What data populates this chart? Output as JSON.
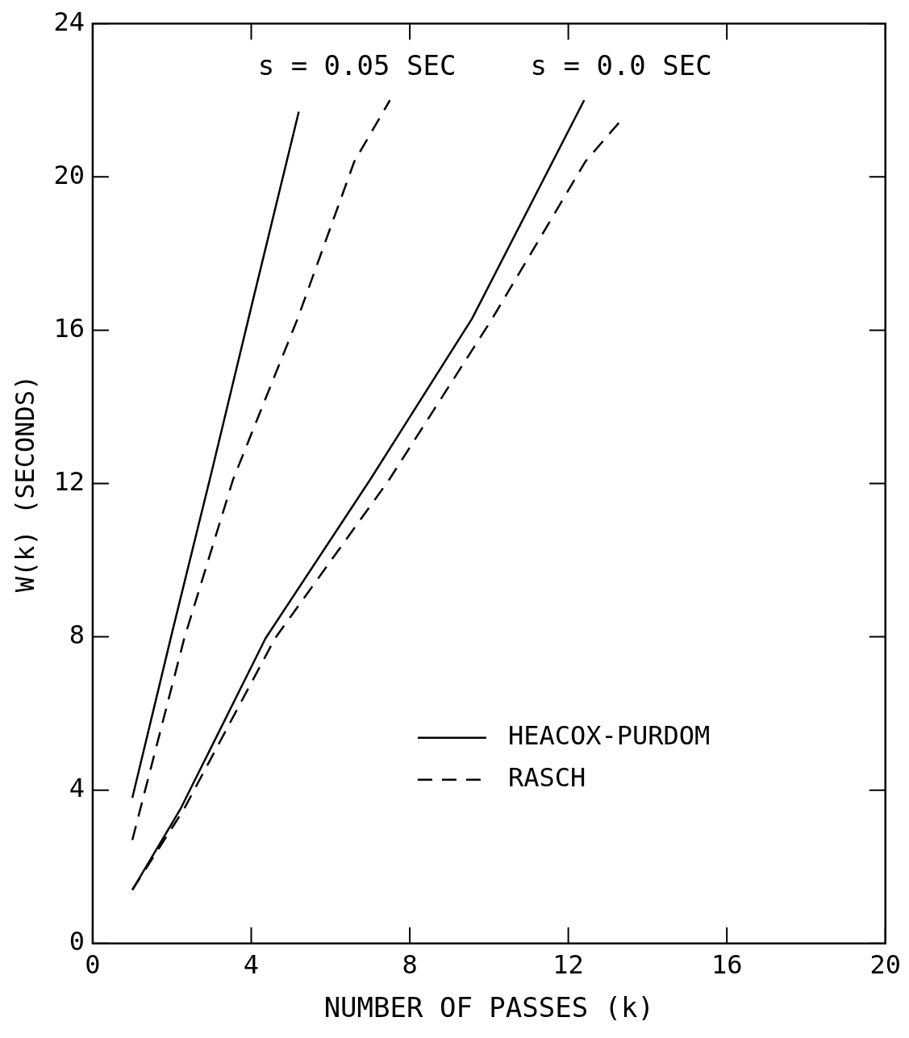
{
  "chart_data": {
    "type": "line",
    "xlabel": "NUMBER OF PASSES (k)",
    "ylabel": "W(k) (SECONDS)",
    "xlim": [
      0,
      20
    ],
    "xticks": [
      0,
      4,
      8,
      12,
      16,
      20
    ],
    "ylim": [
      0,
      24
    ],
    "yticks": [
      0,
      4,
      8,
      12,
      16,
      20,
      24
    ],
    "grid": false,
    "legend": "bottom right",
    "marker": "none",
    "series": [
      {
        "name": "HEACOX-PURDOM",
        "color": "#000000",
        "line_style": "solid",
        "x": [
          1,
          2,
          3,
          4,
          5.2
        ],
        "values": [
          3.8,
          8.1,
          12.3,
          16.6,
          21.7
        ]
      },
      {
        "name": "RASCH",
        "color": "#000000",
        "line_style": "dashed",
        "x": [
          1,
          2.31,
          3.54,
          5.17,
          6.6,
          7.5
        ],
        "values": [
          2.7,
          7.96,
          12.1,
          16.3,
          20.4,
          22.0
        ]
      },
      {
        "color": "#000000",
        "line_style": "solid",
        "x": [
          1,
          2.21,
          4.36,
          7.0,
          9.57,
          12.4
        ],
        "values": [
          1.4,
          3.5,
          7.96,
          12.1,
          16.3,
          22.0
        ]
      },
      {
        "color": "#000000",
        "line_style": "dashed",
        "x": [
          1,
          2.3,
          4.6,
          7.48,
          10.08,
          12.43,
          13.35
        ],
        "values": [
          1.4,
          3.5,
          7.96,
          12.1,
          16.3,
          20.4,
          21.5
        ]
      }
    ],
    "annotations": [
      "s = 0.05 SEC",
      "s = 0.0 SEC"
    ]
  }
}
